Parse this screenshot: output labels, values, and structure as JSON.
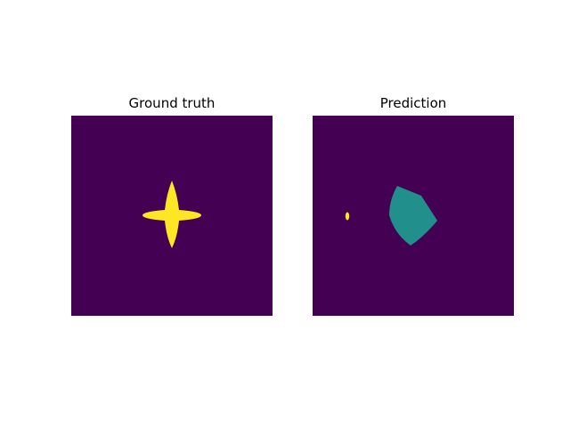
{
  "panels": [
    {
      "title": "Ground truth",
      "colors": {
        "background": "#440154",
        "shape": "#fde725"
      }
    },
    {
      "title": "Prediction",
      "colors": {
        "background": "#440154",
        "region": "#21908d",
        "spot": "#fde725"
      }
    }
  ]
}
